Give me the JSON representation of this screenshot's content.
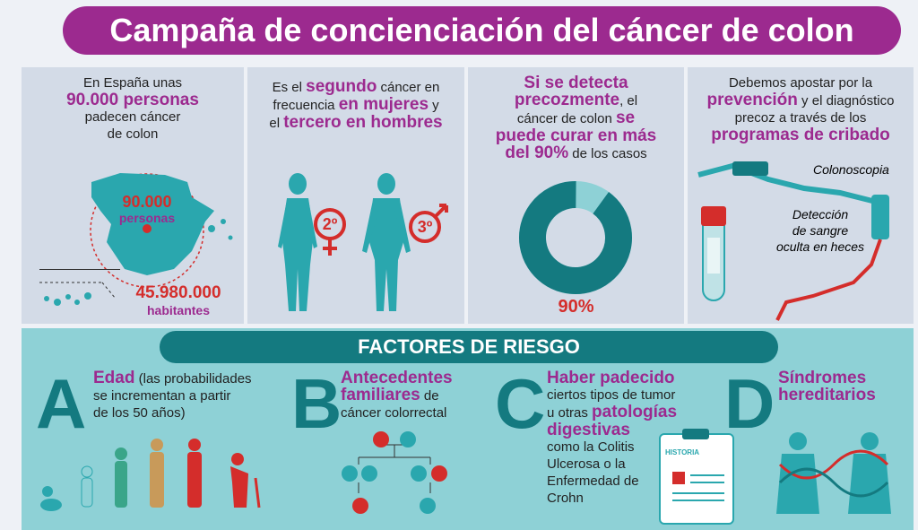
{
  "title": "Campaña de concienciación del cáncer de colon",
  "panel1": {
    "line1": "En España unas",
    "highlight": "90.000 personas",
    "line2": "padecen cáncer",
    "line3": "de colon",
    "map_label_num": "90.000",
    "map_label_word": "personas",
    "pop_num": "45.980.000",
    "pop_word": "habitantes"
  },
  "panel2": {
    "t1": "Es el ",
    "t2": "segundo",
    "t3": " cáncer en",
    "t4": "frecuencia ",
    "t5": "en mujeres",
    "t6": " y",
    "t7": "el ",
    "t8": "tercero en hombres",
    "female_rank": "2º",
    "male_rank": "3º"
  },
  "panel3": {
    "t1": "Si se detecta",
    "t2": "precozmente",
    "t3": ", el",
    "t4": "cáncer de colon ",
    "t5": "se",
    "t6": "puede curar en más",
    "t7": "del 90%",
    "t8": " de los casos",
    "percent_label": "90%",
    "cured_fraction": 0.9
  },
  "panel4": {
    "t1": "Debemos apostar por la",
    "t2": "prevención",
    "t3": " y el diagnóstico",
    "t4": "precoz a través de los",
    "t5": "programas de cribado",
    "label_colonoscopia": "Colonoscopia",
    "label_deteccion_1": "Detección",
    "label_deteccion_2": "de sangre",
    "label_deteccion_3": "oculta en heces"
  },
  "factores": {
    "title": "FACTORES DE RIESGO",
    "items": [
      {
        "letter": "A",
        "bold": "Edad",
        "rest1": " (las probabilidades",
        "rest2": "se incrementan a partir",
        "rest3": "de los 50 años)"
      },
      {
        "letter": "B",
        "bold1": "Antecedentes",
        "bold2": "familiares",
        "rest1": " de",
        "rest2": "cáncer colorrectal"
      },
      {
        "letter": "C",
        "bold1": "Haber padecido",
        "r1": "ciertos tipos de tumor",
        "r2": "u otras ",
        "bold2": "patologías",
        "bold3": "digestivas",
        "r3": "como la Colitis",
        "r4": "Ulcerosa o la",
        "r5": "Enfermedad de",
        "r6": "Crohn",
        "clipboard": "HISTORIA"
      },
      {
        "letter": "D",
        "bold1": "Síndromes",
        "bold2": "hereditarios"
      }
    ]
  },
  "colors": {
    "purple": "#9c2a8f",
    "teal_dark": "#147a80",
    "teal": "#2aa7ae",
    "teal_light": "#8ed1d6",
    "red": "#d42d2b",
    "panel": "#d3dbe7"
  }
}
